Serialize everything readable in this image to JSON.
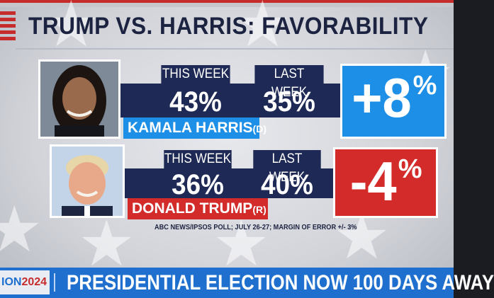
{
  "headline": "TRUMP VS. HARRIS: FAVORABILITY",
  "columns": {
    "this_week": "THIS WEEK",
    "last_week": "LAST WEEK"
  },
  "candidates": [
    {
      "name": "KAMALA HARRIS",
      "party": "(D)",
      "this_week": "43%",
      "last_week": "35%",
      "change": "+8",
      "change_unit": "%",
      "party_color": "#1e8fe6"
    },
    {
      "name": "DONALD TRUMP",
      "party": "(R)",
      "this_week": "36%",
      "last_week": "40%",
      "change": "-4",
      "change_unit": "%",
      "party_color": "#d32a2a"
    }
  ],
  "source": "ABC NEWS/IPSOS POLL; JULY 26-27; MARGIN OF ERROR +/- 3%",
  "ticker": {
    "logo_text": "ION",
    "logo_year": "2024",
    "text": "PRESIDENTIAL ELECTION NOW 100 DAYS AWAY"
  },
  "colors": {
    "navy": "#1e2a55",
    "blue": "#1e8fe6",
    "red": "#d32a2a",
    "ticker_blue": "#1f6fcf"
  }
}
